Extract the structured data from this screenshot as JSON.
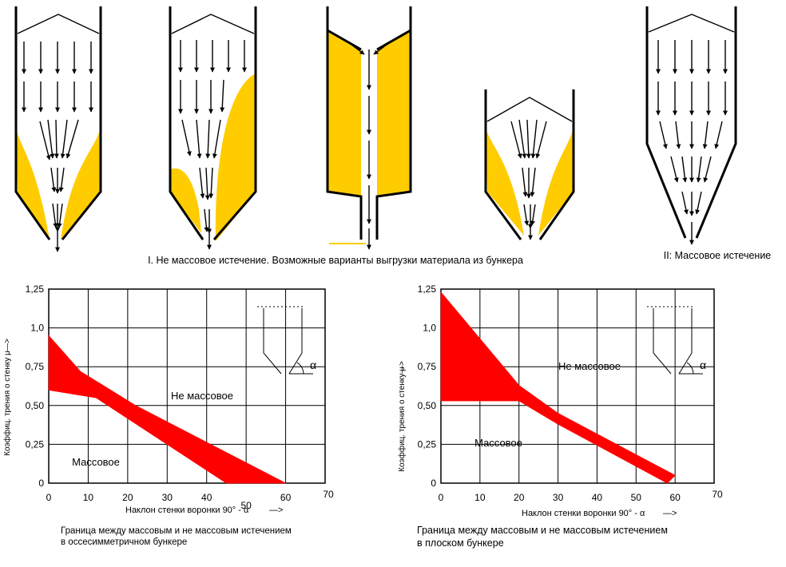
{
  "top": {
    "caption_funnel": "I. Не массовое истечение. Возможные варианты выгрузки материала из бункера",
    "caption_mass": "II:  Массовое истечение"
  },
  "colors": {
    "material": "#FFCC00",
    "region": "#FF0000",
    "line": "#000000"
  },
  "chart_data": [
    {
      "type": "area",
      "title": "Граница между массовым и не массовым истечением",
      "subtitle": "в оссесимметричном бункере",
      "xlabel": "Наклон стенки воронки  90° - α",
      "ylabel": "Коэффиц. трения о стенку  μ",
      "x_ticks": [
        "0",
        "10",
        "20",
        "30",
        "40",
        "50",
        "60",
        "70"
      ],
      "y_ticks": [
        "0",
        "0,25",
        "0,50",
        "0,75",
        "1,0",
        "1,25"
      ],
      "xlim": [
        0,
        70
      ],
      "ylim": [
        0,
        1.25
      ],
      "grid": true,
      "region_labels": [
        "Не массовое",
        "Массовое"
      ],
      "inset_label": "α",
      "series": [
        {
          "upper": [
            [
              0,
              0.95
            ],
            [
              8,
              0.72
            ],
            [
              22,
              0.5
            ],
            [
              60,
              0.0
            ]
          ],
          "lower": [
            [
              0,
              0.6
            ],
            [
              12,
              0.55
            ],
            [
              45,
              0.0
            ]
          ]
        }
      ]
    },
    {
      "type": "area",
      "title": "Граница между массовым и не массовым истечением",
      "subtitle": "в плоском бункере",
      "xlabel": "Наклон стенки воронки  90° - α",
      "ylabel": "Коэффиц. трения о стенку  μ",
      "x_ticks": [
        "0",
        "10",
        "20",
        "30",
        "40",
        "50",
        "60",
        "70"
      ],
      "y_ticks": [
        "0",
        "0,25",
        "0,50",
        "0,75",
        "1,0",
        "1,25"
      ],
      "xlim": [
        0,
        70
      ],
      "ylim": [
        0,
        1.25
      ],
      "grid": true,
      "region_labels": [
        "Не массовое",
        "Массовое"
      ],
      "inset_label": "α",
      "series": [
        {
          "upper": [
            [
              0,
              1.23
            ],
            [
              20,
              0.63
            ],
            [
              30,
              0.45
            ],
            [
              60,
              0.05
            ]
          ],
          "lower": [
            [
              0,
              0.53
            ],
            [
              20,
              0.53
            ],
            [
              30,
              0.38
            ],
            [
              58,
              0.0
            ]
          ]
        }
      ]
    }
  ]
}
